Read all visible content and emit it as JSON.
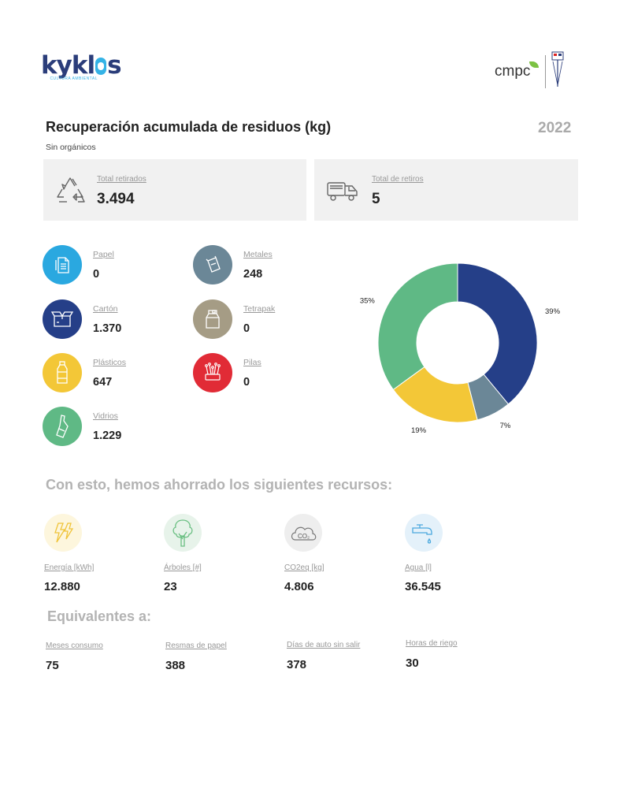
{
  "header": {
    "logo_left_text": "kyklos",
    "logo_left_sub": "CULTURA AMBIENTAL",
    "logo_right_text": "cmpc"
  },
  "report": {
    "title": "Recuperación acumulada de residuos (kg)",
    "subtitle": "Sin orgánicos",
    "year": "2022"
  },
  "summary": {
    "total_retirados_label": "Total retirados",
    "total_retirados_value": "3.494",
    "total_retiros_label": "Total de retiros",
    "total_retiros_value": "5"
  },
  "categories": [
    {
      "label": "Papel",
      "value": "0",
      "color": "#2aa8e0",
      "icon": "paper-icon"
    },
    {
      "label": "Metales",
      "value": "248",
      "color": "#6b8797",
      "icon": "can-icon"
    },
    {
      "label": "Cartón",
      "value": "1.370",
      "color": "#253f88",
      "icon": "box-icon"
    },
    {
      "label": "Tetrapak",
      "value": "0",
      "color": "#a59c85",
      "icon": "carton-icon"
    },
    {
      "label": "Plásticos",
      "value": "647",
      "color": "#f3c737",
      "icon": "bottle-icon"
    },
    {
      "label": "Pilas",
      "value": "0",
      "color": "#e12b36",
      "icon": "battery-icon"
    },
    {
      "label": "Vidrios",
      "value": "1.229",
      "color": "#5fb985",
      "icon": "glass-bottle-icon"
    }
  ],
  "chart_data": {
    "type": "pie",
    "donut": true,
    "slices": [
      {
        "label": "Cartón",
        "value": 39,
        "color": "#253f88",
        "text": "39%"
      },
      {
        "label": "Metales",
        "value": 7,
        "color": "#6b8797",
        "text": "7%"
      },
      {
        "label": "Plásticos",
        "value": 19,
        "color": "#f3c737",
        "text": "19%"
      },
      {
        "label": "Vidrios",
        "value": 35,
        "color": "#5fb985",
        "text": "35%"
      }
    ]
  },
  "resources": {
    "heading": "Con esto, hemos ahorrado los siguientes recursos:",
    "items": [
      {
        "label": "Energía [kWh]",
        "value": "12.880",
        "icon": "lightning-icon",
        "bg": "#fdf6dd"
      },
      {
        "label": "Árboles [#]",
        "value": "23",
        "icon": "tree-icon",
        "bg": "#e7f3ea"
      },
      {
        "label": "CO2eq [kg]",
        "value": "4.806",
        "icon": "co2-cloud-icon",
        "bg": "#eeeeee"
      },
      {
        "label": "Agua [l]",
        "value": "36.545",
        "icon": "faucet-icon",
        "bg": "#e4f1fa"
      }
    ]
  },
  "equivalents": {
    "heading": "Equivalentes a:",
    "items": [
      {
        "label": "Meses consumo",
        "value": "75"
      },
      {
        "label": "Resmas de papel",
        "value": "388"
      },
      {
        "label": "Días de auto sin salir",
        "value": "378"
      },
      {
        "label": "Horas de riego",
        "value": "30"
      }
    ]
  }
}
